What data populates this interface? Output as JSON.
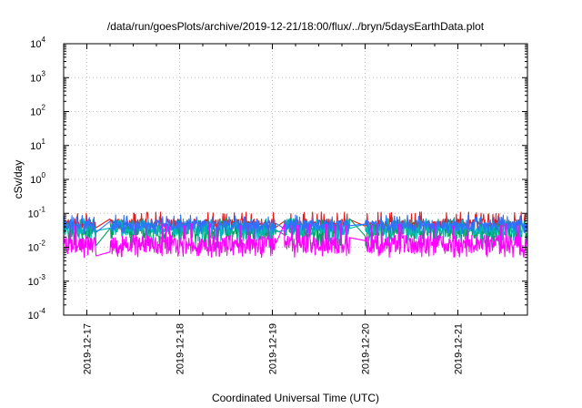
{
  "chart_data": {
    "type": "line",
    "title": "/data/run/goesPlots/archive/2019-12-21/18:00/flux/../bryn/5daysEarthData.plot",
    "xlabel": "Coordinated Universal Time (UTC)",
    "ylabel": "cSv/day",
    "y_scale": "log",
    "ylim": [
      0.0001,
      10000
    ],
    "y_ticks": [
      {
        "base": "10",
        "exp": "4",
        "value": 10000
      },
      {
        "base": "10",
        "exp": "3",
        "value": 1000
      },
      {
        "base": "10",
        "exp": "2",
        "value": 100
      },
      {
        "base": "10",
        "exp": "1",
        "value": 10
      },
      {
        "base": "10",
        "exp": "0",
        "value": 1
      },
      {
        "base": "10",
        "exp": "-1",
        "value": 0.1
      },
      {
        "base": "10",
        "exp": "-2",
        "value": 0.01
      },
      {
        "base": "10",
        "exp": "-3",
        "value": 0.001
      },
      {
        "base": "10",
        "exp": "-4",
        "value": 0.0001
      }
    ],
    "xlim": [
      "2019-12-16T18:00",
      "2019-12-21T18:00"
    ],
    "x_ticks": [
      {
        "label": "2019-12-17",
        "value": "2019-12-17T00:00"
      },
      {
        "label": "2019-12-18",
        "value": "2019-12-18T00:00"
      },
      {
        "label": "2019-12-19",
        "value": "2019-12-19T00:00"
      },
      {
        "label": "2019-12-20",
        "value": "2019-12-20T00:00"
      },
      {
        "label": "2019-12-21",
        "value": "2019-12-21T00:00"
      }
    ],
    "grid": true,
    "legend": "none",
    "data_gaps": [
      [
        "2019-12-17T02:30",
        "2019-12-17T06:00"
      ],
      [
        "2019-12-19T01:00",
        "2019-12-19T03:00"
      ],
      [
        "2019-12-19T20:00",
        "2019-12-20T00:00"
      ]
    ],
    "series": [
      {
        "color": "#e41a1c",
        "y_typical": 0.05,
        "y_min": 0.035,
        "y_max": 0.11
      },
      {
        "color": "#00a060",
        "y_typical": 0.03,
        "y_min": 0.01,
        "y_max": 0.07
      },
      {
        "color": "#00b8b8",
        "y_typical": 0.035,
        "y_min": 0.015,
        "y_max": 0.07
      },
      {
        "color": "#3070ff",
        "y_typical": 0.045,
        "y_min": 0.025,
        "y_max": 0.09
      },
      {
        "color": "#ff00ff",
        "y_typical": 0.012,
        "y_min": 0.005,
        "y_max": 0.05
      }
    ]
  }
}
